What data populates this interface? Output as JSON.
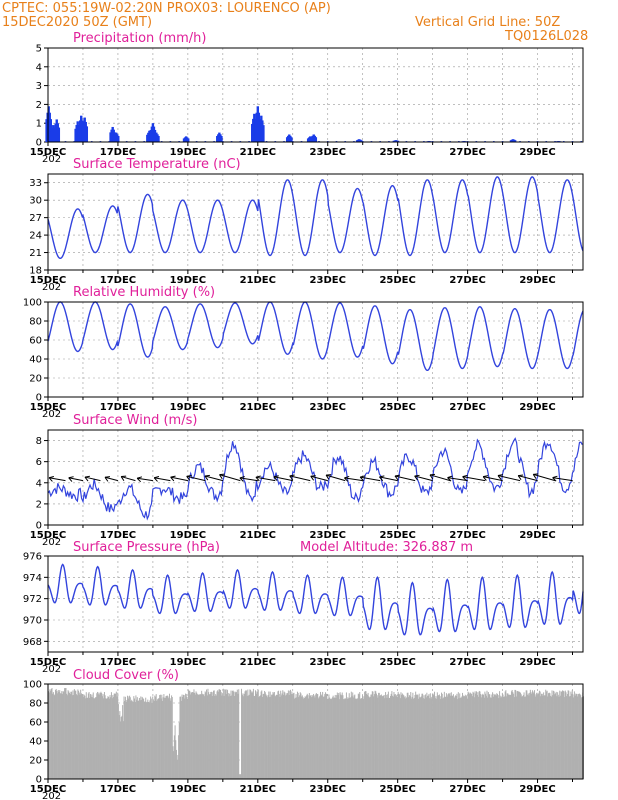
{
  "header": {
    "line1_left": "CPTEC:   055:19W-02:20N   PROX03: LOURENCO (AP)",
    "line2_left": "15DEC2020 50Z (GMT)",
    "line2_right": "Vertical Grid Line: 50Z",
    "line3_right": "TQ0126L028",
    "model_altitude": "Model Altitude: 326.887 m"
  },
  "colors": {
    "header": "#e8801a",
    "title": "#e0209a",
    "line": "#3344dd",
    "bar": "#1a3ce8",
    "cloud": "#b0b0b0",
    "arrow": "#000000"
  },
  "x_axis": {
    "labels": [
      "15DEC",
      "17DEC",
      "19DEC",
      "21DEC",
      "23DEC",
      "25DEC",
      "27DEC",
      "29DEC"
    ],
    "stub": "202",
    "range_days": [
      0,
      15.3
    ]
  },
  "chart_data": [
    {
      "id": "precip",
      "type": "bar",
      "title": "Precipitation (mm/h)",
      "ylim": [
        0,
        5
      ],
      "yticks": [
        "0",
        "1",
        "2",
        "3",
        "4",
        "5"
      ],
      "events": [
        [
          0.02,
          1.9
        ],
        [
          0.15,
          0.9
        ],
        [
          0.25,
          1.2
        ],
        [
          0.85,
          1.1
        ],
        [
          0.95,
          1.4
        ],
        [
          1.05,
          1.3
        ],
        [
          1.85,
          0.8
        ],
        [
          1.95,
          0.5
        ],
        [
          2.9,
          0.6
        ],
        [
          3.0,
          1.0
        ],
        [
          3.1,
          0.5
        ],
        [
          3.95,
          0.3
        ],
        [
          4.9,
          0.5
        ],
        [
          5.9,
          1.5
        ],
        [
          6.0,
          1.9
        ],
        [
          6.1,
          1.4
        ],
        [
          6.9,
          0.4
        ],
        [
          7.5,
          0.3
        ],
        [
          7.6,
          0.4
        ],
        [
          8.9,
          0.15
        ],
        [
          9.95,
          0.1
        ],
        [
          10.9,
          0.05
        ],
        [
          11.9,
          0.05
        ],
        [
          13.3,
          0.15
        ],
        [
          14.6,
          0.05
        ]
      ]
    },
    {
      "id": "temp",
      "type": "line",
      "title": "Surface Temperature (nC)",
      "ylim": [
        18,
        34.5
      ],
      "yticks": [
        "18",
        "21",
        "24",
        "27",
        "30",
        "33"
      ],
      "min": [
        20.0,
        21.0,
        21.0,
        21.0,
        21.0,
        21.0,
        20.5,
        20.5,
        21.0,
        20.5,
        20.5,
        21.0,
        21.0,
        21.0,
        21.0,
        21.0
      ],
      "max": [
        28.5,
        29.0,
        31.0,
        30.0,
        30.0,
        30.0,
        33.5,
        33.5,
        32.0,
        32.5,
        33.5,
        33.5,
        34.0,
        34.0,
        33.5,
        33.5
      ]
    },
    {
      "id": "rh",
      "type": "line",
      "title": "Relative Humidity (%)",
      "ylim": [
        0,
        100
      ],
      "yticks": [
        "0",
        "20",
        "40",
        "60",
        "80",
        "100"
      ],
      "max": [
        100,
        100,
        98,
        95,
        98,
        99,
        100,
        100,
        99,
        96,
        92,
        94,
        95,
        93,
        92,
        92
      ],
      "min": [
        48,
        50,
        42,
        50,
        52,
        56,
        45,
        40,
        42,
        35,
        28,
        30,
        32,
        30,
        30,
        28
      ]
    },
    {
      "id": "wind",
      "type": "line",
      "title": "Surface Wind (m/s)",
      "ylim": [
        0,
        9
      ],
      "yticks": [
        "0",
        "2",
        "4",
        "6",
        "8"
      ],
      "daily_max": [
        3.5,
        3.8,
        3.5,
        3.5,
        5.5,
        7.8,
        5.5,
        6.5,
        6.5,
        6.0,
        6.5,
        7.0,
        7.5,
        7.8,
        8.0,
        7.8
      ],
      "daily_min": [
        2.8,
        1.5,
        1.0,
        2.5,
        2.8,
        2.5,
        3.0,
        3.5,
        2.5,
        3.0,
        3.0,
        3.0,
        3.5,
        3.2,
        3.5,
        3.2
      ],
      "arrow_interval_days": 0.5
    },
    {
      "id": "pres",
      "type": "line",
      "title": "Surface Pressure (hPa)",
      "ylim": [
        967,
        976
      ],
      "yticks": [
        "968",
        "970",
        "972",
        "974",
        "976"
      ],
      "mean_by_day": [
        973.0,
        972.8,
        972.5,
        972.0,
        972.2,
        972.5,
        972.3,
        972.0,
        971.8,
        971.0,
        970.5,
        970.8,
        971.0,
        971.2,
        971.5,
        972.5
      ]
    },
    {
      "id": "cloud",
      "type": "area",
      "title": "Cloud Cover (%)",
      "ylim": [
        0,
        100
      ],
      "yticks": [
        "0",
        "20",
        "40",
        "60",
        "80",
        "100"
      ],
      "base_by_day": [
        96,
        92,
        88,
        90,
        95,
        95,
        94,
        92,
        92,
        93,
        92,
        92,
        93,
        94,
        94,
        93
      ]
    }
  ]
}
